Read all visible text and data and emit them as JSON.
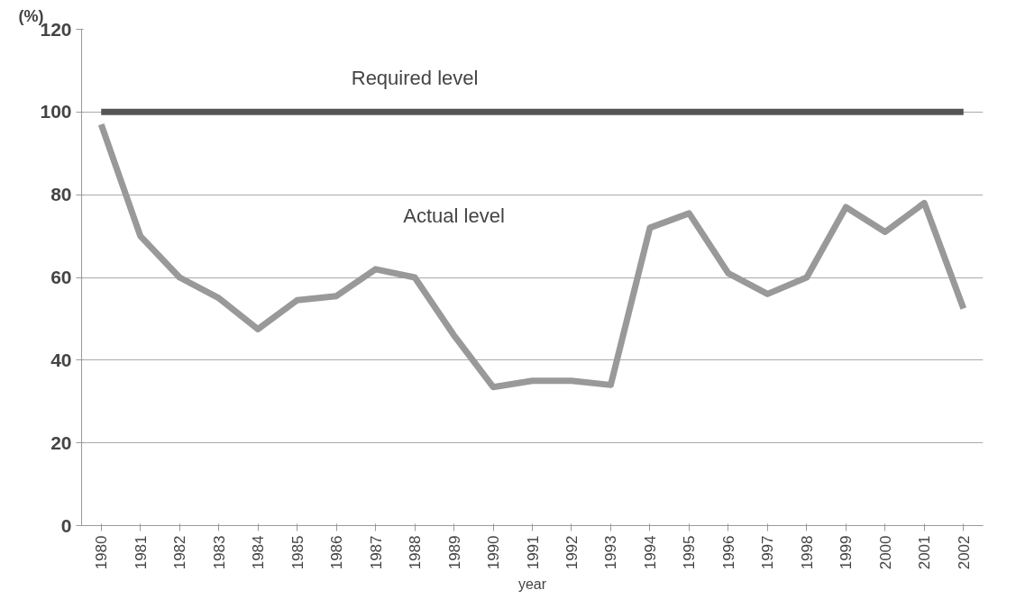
{
  "chart_data": {
    "type": "line",
    "xlabel": "year",
    "ylabel": "(%)",
    "categories": [
      "1980",
      "1981",
      "1982",
      "1983",
      "1984",
      "1985",
      "1986",
      "1987",
      "1988",
      "1989",
      "1990",
      "1991",
      "1992",
      "1993",
      "1994",
      "1995",
      "1996",
      "1997",
      "1998",
      "1999",
      "2000",
      "2001",
      "2002"
    ],
    "series": [
      {
        "name": "Required level",
        "color": "#555555",
        "values": [
          100,
          100,
          100,
          100,
          100,
          100,
          100,
          100,
          100,
          100,
          100,
          100,
          100,
          100,
          100,
          100,
          100,
          100,
          100,
          100,
          100,
          100,
          100
        ]
      },
      {
        "name": "Actual level",
        "color": "#999999",
        "values": [
          97,
          70,
          60,
          55,
          47.5,
          54.5,
          55.5,
          62,
          60,
          46,
          33.5,
          35,
          35,
          34,
          72,
          75.5,
          61,
          56,
          60,
          77,
          71,
          78,
          52.5
        ]
      }
    ],
    "ylim": [
      0,
      120
    ],
    "yticks": [
      0,
      20,
      40,
      60,
      80,
      100,
      120
    ],
    "grid": "y",
    "marker": "none",
    "line_style": "solid"
  }
}
